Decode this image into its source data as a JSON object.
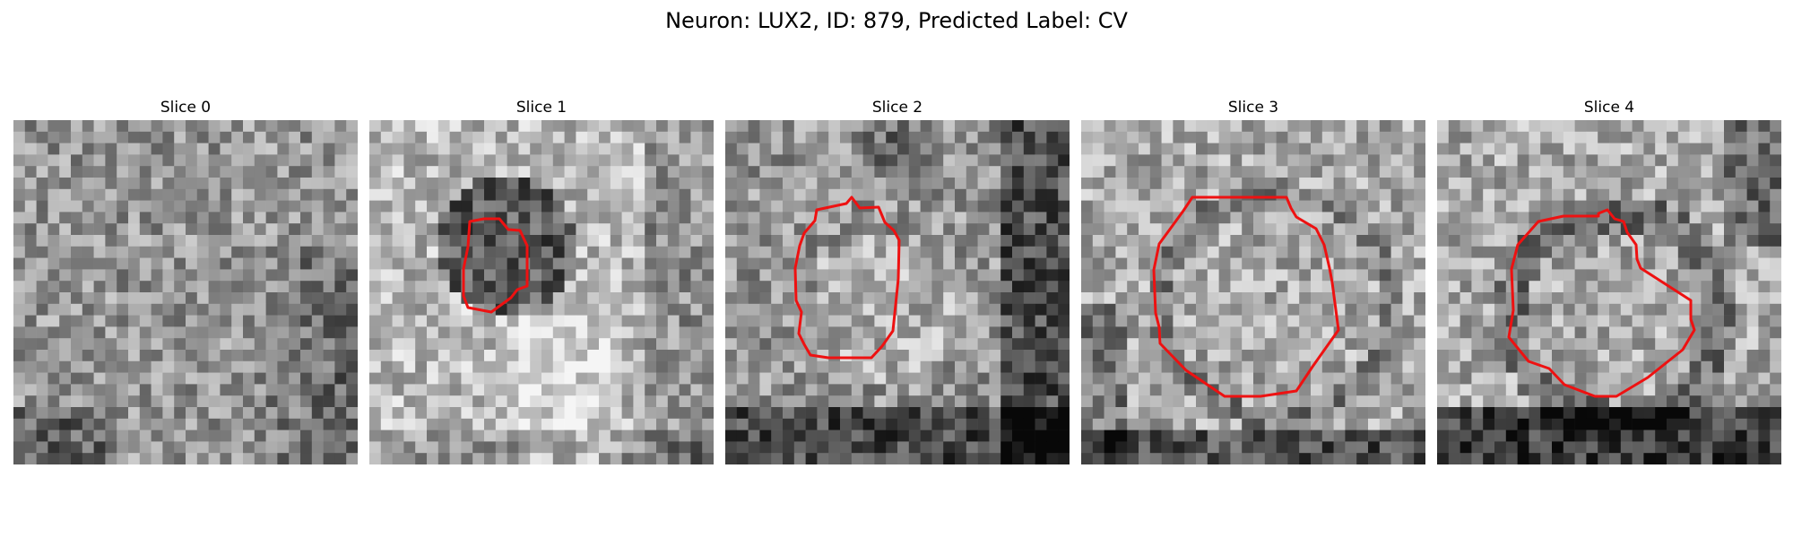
{
  "figure": {
    "title": "Neuron: LUX2, ID: 879, Predicted Label: CV",
    "contour_color": "#ee1111",
    "colormap": "gray",
    "grid_cells_per_side": 30
  },
  "slices": [
    {
      "title": "Slice 0"
    },
    {
      "title": "Slice 1"
    },
    {
      "title": "Slice 2"
    },
    {
      "title": "Slice 3"
    },
    {
      "title": "Slice 4"
    }
  ]
}
